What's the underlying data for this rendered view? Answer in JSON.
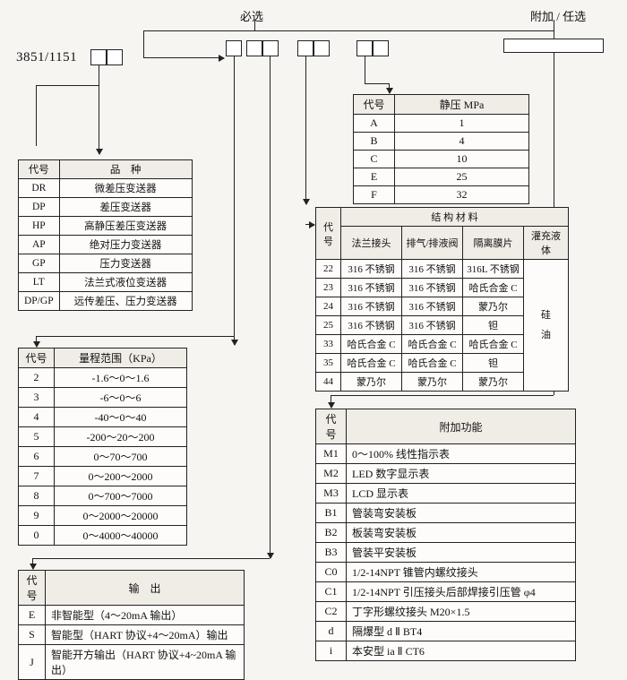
{
  "labels": {
    "required": "必选",
    "optional": "附加 / 任选",
    "model": "3851/1151"
  },
  "pinzhong": {
    "header": [
      "代号",
      "品　种"
    ],
    "rows": [
      [
        "DR",
        "微差压变送器"
      ],
      [
        "DP",
        "差压变送器"
      ],
      [
        "HP",
        "高静压差压变送器"
      ],
      [
        "AP",
        "绝对压力变送器"
      ],
      [
        "GP",
        "压力变送器"
      ],
      [
        "LT",
        "法兰式液位变送器"
      ],
      [
        "DP/GP",
        "远传差压、压力变送器"
      ]
    ]
  },
  "range": {
    "header": [
      "代号",
      "量程范围（KPa）"
    ],
    "rows": [
      [
        "2",
        "-1.6～0～1.6"
      ],
      [
        "3",
        "-6～0～6"
      ],
      [
        "4",
        "-40～0～40"
      ],
      [
        "5",
        "-200～20～200"
      ],
      [
        "6",
        "0～70～700"
      ],
      [
        "7",
        "0～200～2000"
      ],
      [
        "8",
        "0～700～7000"
      ],
      [
        "9",
        "0～2000～20000"
      ],
      [
        "0",
        "0～4000～40000"
      ]
    ]
  },
  "output": {
    "header": [
      "代号",
      "输　出"
    ],
    "rows": [
      [
        "E",
        "非智能型（4～20mA 输出）"
      ],
      [
        "S",
        "智能型（HART 协议+4～20mA）输出"
      ],
      [
        "J",
        "智能开方输出（HART 协议+4~20mA 输出）"
      ]
    ]
  },
  "static": {
    "header": [
      "代号",
      "静压 MPa"
    ],
    "rows": [
      [
        "A",
        "1"
      ],
      [
        "B",
        "4"
      ],
      [
        "C",
        "10"
      ],
      [
        "E",
        "25"
      ],
      [
        "F",
        "32"
      ]
    ]
  },
  "struct": {
    "top": "结 构 材 料",
    "header": [
      "代号",
      "法兰接头",
      "排气/排液阀",
      "隔离膜片",
      "灌充液体"
    ],
    "liquid": "硅\n油",
    "rows": [
      [
        "22",
        "316 不锈钢",
        "316 不锈钢",
        "316L 不锈钢"
      ],
      [
        "23",
        "316 不锈钢",
        "316 不锈钢",
        "哈氏合金 C"
      ],
      [
        "24",
        "316 不锈钢",
        "316 不锈钢",
        "蒙乃尔"
      ],
      [
        "25",
        "316 不锈钢",
        "316 不锈钢",
        "钽"
      ],
      [
        "33",
        "哈氏合金 C",
        "哈氏合金 C",
        "哈氏合金 C"
      ],
      [
        "35",
        "哈氏合金 C",
        "哈氏合金 C",
        "钽"
      ],
      [
        "44",
        "蒙乃尔",
        "蒙乃尔",
        "蒙乃尔"
      ]
    ]
  },
  "addon": {
    "header": [
      "代号",
      "附加功能"
    ],
    "rows": [
      [
        "M1",
        "0～100% 线性指示表"
      ],
      [
        "M2",
        "LED 数字显示表"
      ],
      [
        "M3",
        "LCD 显示表"
      ],
      [
        "B1",
        "管装弯安装板"
      ],
      [
        "B2",
        "板装弯安装板"
      ],
      [
        "B3",
        "管装平安装板"
      ],
      [
        "C0",
        "1/2-14NPT 锥管内螺纹接头"
      ],
      [
        "C1",
        "1/2-14NPT 引压接头后部焊接引压管 φ4"
      ],
      [
        "C2",
        "丁字形螺纹接头 M20×1.5"
      ],
      [
        "d",
        "隔爆型 d Ⅱ BT4"
      ],
      [
        "i",
        "本安型 ia Ⅱ CT6"
      ]
    ]
  },
  "colors": {
    "bg": "#f7f5f2",
    "line": "#222222",
    "cell": "#fdfcfa",
    "head": "#f0ece6"
  }
}
